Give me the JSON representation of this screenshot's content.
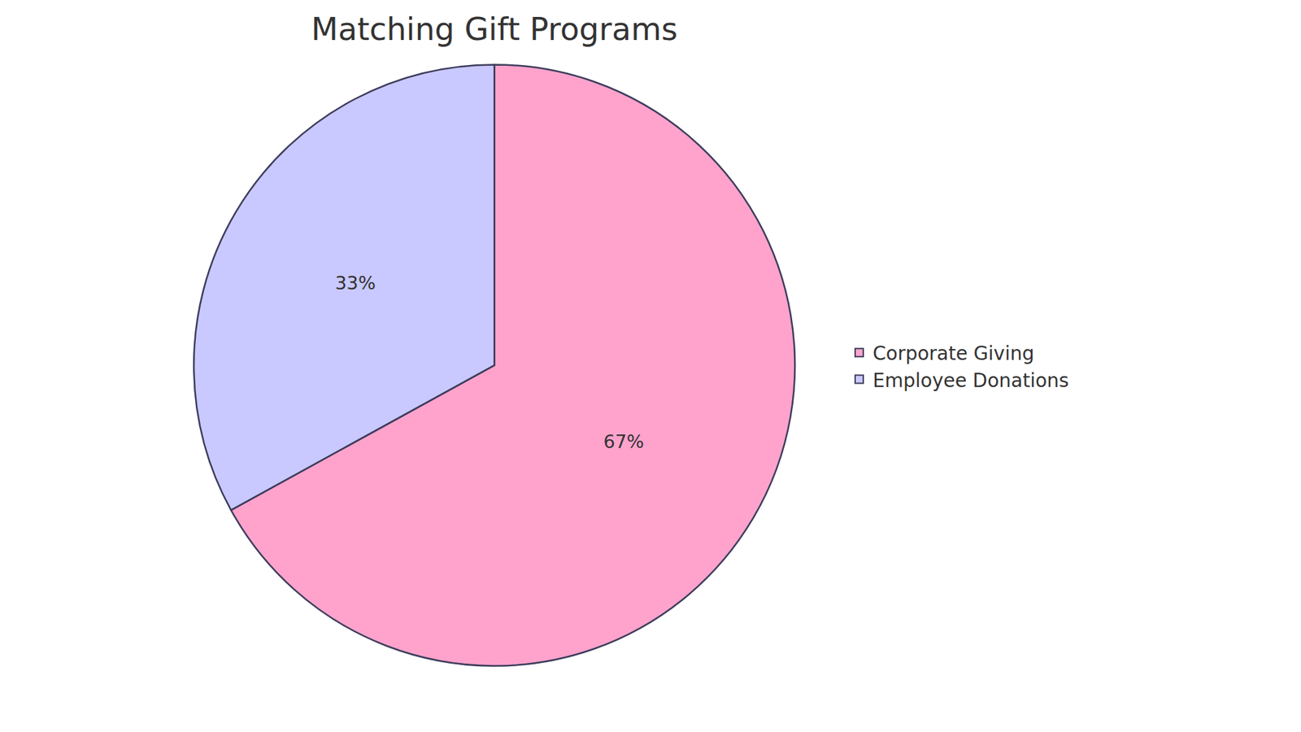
{
  "chart_data": {
    "type": "pie",
    "title": "Matching Gift Programs",
    "categories": [
      "Corporate Giving",
      "Employee Donations"
    ],
    "values": [
      67,
      33
    ],
    "value_labels": [
      "67%",
      "33%"
    ],
    "colors": [
      "#ffa3cc",
      "#c9c9ff"
    ],
    "data_labels": true,
    "legend": "right"
  }
}
